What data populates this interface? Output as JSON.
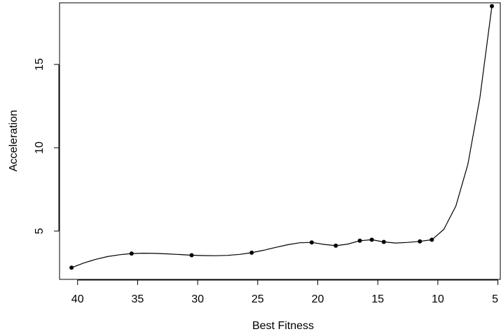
{
  "chart_data": {
    "type": "line",
    "xlabel": "Best Fitness",
    "ylabel": "Acceleration",
    "xlim": [
      41.5,
      4.8
    ],
    "ylim": [
      2.1,
      18.7
    ],
    "x_reversed": true,
    "grid": false,
    "xticks": [
      40,
      35,
      30,
      25,
      20,
      15,
      10,
      5
    ],
    "yticks": [
      5,
      10,
      15
    ],
    "series": [
      {
        "values": [
          {
            "x": 40.5,
            "y": 2.8
          },
          {
            "x": 35.5,
            "y": 3.65
          },
          {
            "x": 30.5,
            "y": 3.55
          },
          {
            "x": 25.5,
            "y": 3.7
          },
          {
            "x": 20.5,
            "y": 4.32
          },
          {
            "x": 18.5,
            "y": 4.12
          },
          {
            "x": 16.5,
            "y": 4.42
          },
          {
            "x": 15.5,
            "y": 4.48
          },
          {
            "x": 14.5,
            "y": 4.35
          },
          {
            "x": 11.5,
            "y": 4.38
          },
          {
            "x": 10.5,
            "y": 4.48
          },
          {
            "x": 5.5,
            "y": 18.5
          }
        ]
      }
    ],
    "smooth_curve": [
      [
        40.5,
        2.8
      ],
      [
        39.5,
        3.08
      ],
      [
        38.5,
        3.3
      ],
      [
        37.5,
        3.47
      ],
      [
        36.5,
        3.58
      ],
      [
        35.5,
        3.65
      ],
      [
        34.5,
        3.67
      ],
      [
        33.5,
        3.66
      ],
      [
        32.5,
        3.63
      ],
      [
        31.5,
        3.59
      ],
      [
        30.5,
        3.55
      ],
      [
        29.5,
        3.53
      ],
      [
        28.5,
        3.52
      ],
      [
        27.5,
        3.54
      ],
      [
        26.5,
        3.6
      ],
      [
        25.5,
        3.7
      ],
      [
        24.5,
        3.85
      ],
      [
        23.5,
        4.02
      ],
      [
        22.5,
        4.18
      ],
      [
        21.5,
        4.3
      ],
      [
        20.5,
        4.32
      ],
      [
        19.5,
        4.2
      ],
      [
        18.5,
        4.12
      ],
      [
        17.5,
        4.22
      ],
      [
        16.5,
        4.42
      ],
      [
        15.5,
        4.48
      ],
      [
        14.5,
        4.35
      ],
      [
        13.5,
        4.28
      ],
      [
        12.5,
        4.32
      ],
      [
        11.5,
        4.38
      ],
      [
        10.5,
        4.48
      ],
      [
        9.5,
        5.1
      ],
      [
        8.5,
        6.5
      ],
      [
        7.5,
        9.0
      ],
      [
        6.5,
        13.0
      ],
      [
        5.5,
        18.5
      ]
    ]
  }
}
